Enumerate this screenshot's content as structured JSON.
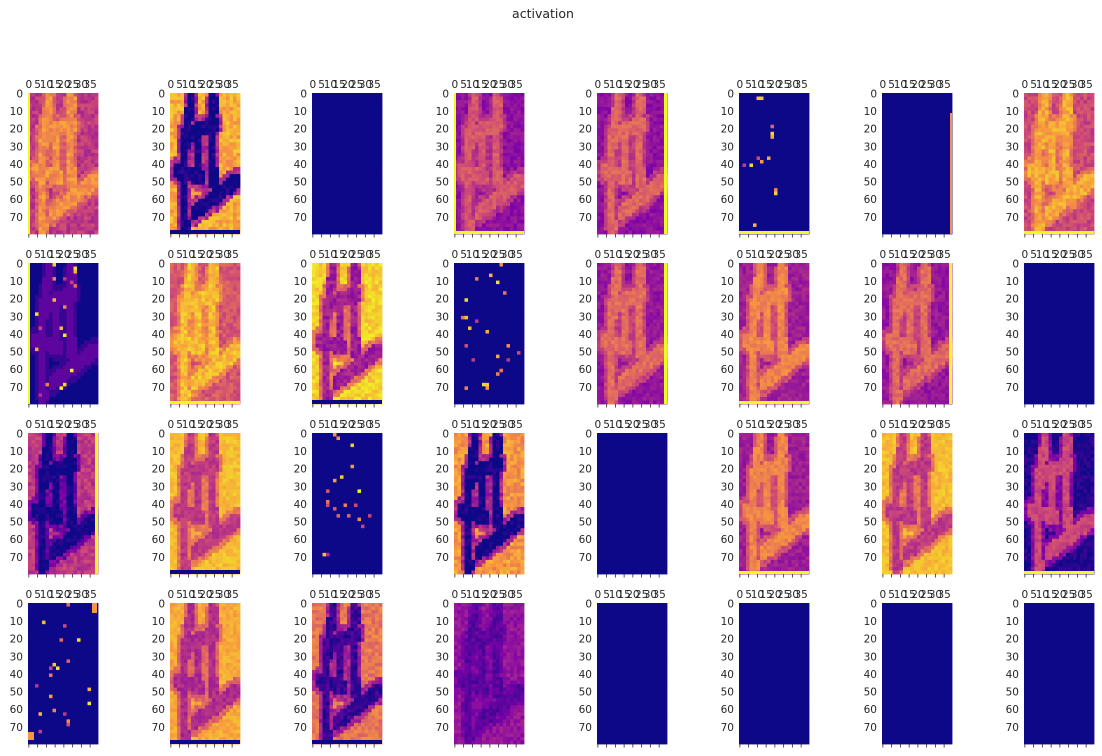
{
  "chart_data": {
    "type": "heatmap",
    "title": "activation",
    "grid": false,
    "layout": {
      "rows": 4,
      "cols": 8
    },
    "colormap": "plasma",
    "xticks": [
      "0",
      "5",
      "10",
      "15",
      "20",
      "25",
      "30",
      "35"
    ],
    "yticks": [
      "0",
      "10",
      "20",
      "30",
      "40",
      "50",
      "60",
      "70"
    ],
    "xlim": [
      0,
      39
    ],
    "ylim": [
      79,
      0
    ],
    "colors": {
      "low": "#0d0887",
      "mid_low": "#7e03a8",
      "mid": "#cc4778",
      "mid_high": "#f89540",
      "high": "#f0f921"
    },
    "panels": [
      {
        "base": 0.45,
        "strokes": 0.28,
        "noise": 0.08,
        "edge": "left"
      },
      {
        "base": 0.8,
        "strokes": -0.8,
        "noise": 0.1,
        "edge": "bottom-dark"
      },
      {
        "base": 0.0,
        "strokes": 0.0,
        "noise": 0.0
      },
      {
        "base": 0.3,
        "strokes": 0.25,
        "noise": 0.06,
        "edge": "left-bottom"
      },
      {
        "base": 0.3,
        "strokes": 0.3,
        "noise": 0.06,
        "edge": "right"
      },
      {
        "base": 0.0,
        "strokes": 0.0,
        "noise": 0.0,
        "sparse": true,
        "edge": "bottom"
      },
      {
        "base": 0.0,
        "strokes": 0.0,
        "noise": 0.0,
        "edge": "right-thin"
      },
      {
        "base": 0.5,
        "strokes": 0.3,
        "noise": 0.08,
        "edge": "bottom"
      },
      {
        "base": 0.0,
        "strokes": 0.18,
        "noise": 0.0,
        "sparse": true,
        "edge": "left"
      },
      {
        "base": 0.55,
        "strokes": 0.3,
        "noise": 0.08,
        "edge": "bottom"
      },
      {
        "base": 0.9,
        "strokes": -0.55,
        "noise": 0.08,
        "edge": "bottom-dark"
      },
      {
        "base": 0.0,
        "strokes": 0.0,
        "noise": 0.0,
        "sparse": true
      },
      {
        "base": 0.32,
        "strokes": 0.3,
        "noise": 0.06,
        "edge": "right"
      },
      {
        "base": 0.35,
        "strokes": 0.35,
        "noise": 0.06,
        "edge": "bottom"
      },
      {
        "base": 0.32,
        "strokes": 0.3,
        "noise": 0.06,
        "edge": "right"
      },
      {
        "base": 0.0,
        "strokes": 0.0,
        "noise": 0.0
      },
      {
        "base": 0.45,
        "strokes": -0.45,
        "noise": 0.08,
        "edge": "right"
      },
      {
        "base": 0.85,
        "strokes": -0.4,
        "noise": 0.06,
        "edge": "bottom-dark"
      },
      {
        "base": 0.0,
        "strokes": 0.0,
        "noise": 0.0,
        "sparse": true
      },
      {
        "base": 0.75,
        "strokes": -0.75,
        "noise": 0.1
      },
      {
        "base": 0.0,
        "strokes": 0.0,
        "noise": 0.0
      },
      {
        "base": 0.35,
        "strokes": 0.35,
        "noise": 0.06,
        "edge": "bottom"
      },
      {
        "base": 0.85,
        "strokes": -0.4,
        "noise": 0.06
      },
      {
        "base": 0.05,
        "strokes": 0.45,
        "noise": 0.06,
        "edge": "bottom"
      },
      {
        "base": 0.0,
        "strokes": 0.0,
        "noise": 0.0,
        "sparse": true,
        "edge": "corner"
      },
      {
        "base": 0.8,
        "strokes": -0.4,
        "noise": 0.06,
        "edge": "bottom-dark"
      },
      {
        "base": 0.65,
        "strokes": -0.55,
        "noise": 0.08,
        "edge": "bottom-dark"
      },
      {
        "base": 0.32,
        "strokes": -0.15,
        "noise": 0.06
      },
      {
        "base": 0.0,
        "strokes": 0.0,
        "noise": 0.0
      },
      {
        "base": 0.0,
        "strokes": 0.0,
        "noise": 0.0
      },
      {
        "base": 0.0,
        "strokes": 0.0,
        "noise": 0.0
      },
      {
        "base": 0.0,
        "strokes": 0.0,
        "noise": 0.0
      }
    ]
  }
}
